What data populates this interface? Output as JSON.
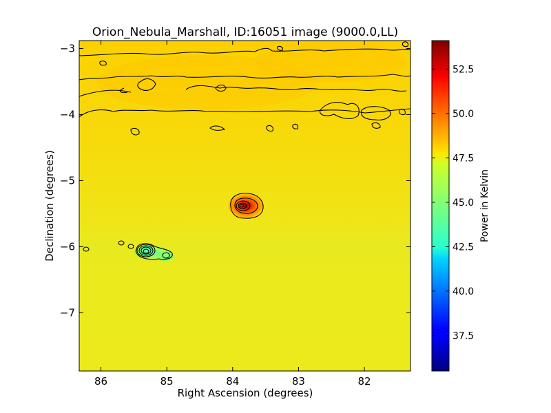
{
  "chart_data": {
    "type": "heatmap",
    "title": "Orion_Nebula_Marshall, ID:16051 image (9000.0,LL)",
    "xlabel": "Right Ascension (degrees)",
    "ylabel": "Declination (degrees)",
    "xlim": [
      86.33,
      81.3
    ],
    "ylim": [
      -7.88,
      -2.88
    ],
    "x_ticks": [
      86,
      85,
      84,
      83,
      82
    ],
    "x_tick_labels": [
      "86",
      "85",
      "84",
      "83",
      "82"
    ],
    "y_ticks": [
      -3,
      -4,
      -5,
      -6,
      -7
    ],
    "y_tick_labels": [
      "−3",
      "−4",
      "−5",
      "−6",
      "−7"
    ],
    "colorbar": {
      "label": "Power in Kelvin",
      "range": [
        35.5,
        54.1
      ],
      "ticks": [
        37.5,
        40.0,
        42.5,
        45.0,
        47.5,
        50.0,
        52.5
      ],
      "tick_labels": [
        "37.5",
        "40.0",
        "42.5",
        "45.0",
        "47.5",
        "50.0",
        "52.5"
      ],
      "colormap": "jet"
    },
    "background_level_k": 47.8,
    "features": [
      {
        "kind": "hot-spot",
        "ra": 83.85,
        "dec": -5.4,
        "peak_k": 53.5
      },
      {
        "kind": "cold-spot",
        "ra": 85.3,
        "dec": -6.1,
        "min_k": 44.5
      },
      {
        "kind": "cold-spot",
        "ra": 84.95,
        "dec": -6.15,
        "min_k": 45.5
      }
    ]
  }
}
